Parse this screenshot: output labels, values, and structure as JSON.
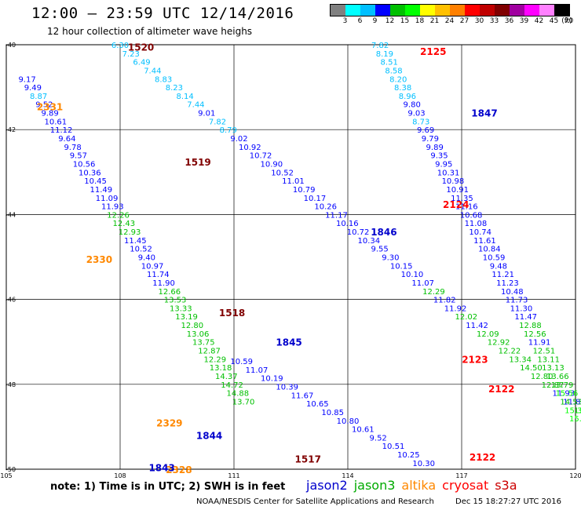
{
  "title": "12:00 – 23:59 UTC 12/14/2016",
  "subtitle": "12 hour collection of altimeter wave heighs",
  "note": "note: 1) Time is in UTC; 2) SWH is in feet",
  "credit": "NOAA/NESDIS Center for Satellite Applications and Research",
  "generated": "Dec 15 18:27:27 UTC 2016",
  "scale": {
    "unit": "(ft)",
    "colors": [
      "#808080",
      "#00ffff",
      "#00bfff",
      "#0000ff",
      "#00c000",
      "#00ff00",
      "#ffff00",
      "#ffc000",
      "#ff8000",
      "#ff0000",
      "#c00000",
      "#800000",
      "#a000a0",
      "#ff00ff",
      "#ff80ff",
      "#000000"
    ],
    "labels": [
      "3",
      "6",
      "9",
      "12",
      "15",
      "18",
      "21",
      "24",
      "27",
      "30",
      "33",
      "36",
      "39",
      "42",
      "45",
      "70"
    ]
  },
  "satellites": [
    {
      "name": "jason2",
      "color": "#0000cc"
    },
    {
      "name": "jason3",
      "color": "#00aa00"
    },
    {
      "name": "altika",
      "color": "#ff8800"
    },
    {
      "name": "cryosat",
      "color": "#ff0000"
    },
    {
      "name": "s3a",
      "color": "#cc0000"
    }
  ],
  "map": {
    "lon_range": [
      105,
      120
    ],
    "lat_range": [
      -50,
      -40
    ],
    "lon_ticks": [
      105,
      108,
      111,
      114,
      117,
      120
    ],
    "lat_ticks": [
      -40,
      -42,
      -44,
      -46,
      -48,
      -50
    ],
    "lon_labels": [
      "105",
      "108",
      "111",
      "114",
      "117",
      "120"
    ],
    "lat_labels": [
      "-40",
      "-42",
      "-44",
      "-46",
      "-48",
      "-50"
    ]
  },
  "chart_data": {
    "type": "scatter",
    "xlabel": "",
    "ylabel": "",
    "xlim": [
      105,
      120
    ],
    "ylim": [
      -50,
      -40
    ],
    "grid": true,
    "tracks": [
      {
        "id": "cryosat-1520",
        "lon0": 108.0,
        "lat0": -40.0,
        "dlon": 0.285,
        "dlat": 0.2,
        "values": [
          6.3,
          7.23,
          6.49,
          7.44,
          8.83,
          8.23,
          8.14,
          7.44,
          9.01,
          7.82,
          8.79,
          9.02,
          10.92,
          10.72,
          10.9,
          10.52,
          11.01,
          10.79,
          10.17,
          10.26,
          11.17,
          10.16,
          10.72,
          10.34,
          9.55,
          9.3,
          10.15,
          10.1,
          11.07,
          12.29,
          11.82,
          11.92,
          12.02,
          11.42,
          12.09,
          12.92,
          12.22,
          13.34,
          14.5,
          12.8,
          12.87,
          11.93,
          11.89,
          13.32,
          15.21,
          14.53,
          13.32,
          13.28
        ]
      },
      {
        "id": "altika-2331",
        "lon0": 105.55,
        "lat0": -40.8,
        "dlon": 0.15,
        "dlat": 0.2,
        "values": [
          9.17,
          9.49,
          8.87,
          9.52,
          9.89,
          10.61,
          11.12,
          9.64,
          9.78,
          9.57,
          10.56,
          10.36,
          10.45,
          11.49,
          11.09,
          11.93,
          12.26,
          12.43,
          12.93,
          11.45,
          10.52,
          9.4,
          10.97,
          11.74,
          11.9,
          12.66,
          13.53,
          13.33,
          13.19,
          12.8,
          13.06,
          13.75,
          12.87,
          12.29,
          13.18,
          14.37,
          14.72,
          14.88,
          13.7
        ]
      },
      {
        "id": "jason2-1845",
        "lon0": 111.2,
        "lat0": -47.45,
        "dlon": 0.4,
        "dlat": 0.2,
        "values": [
          10.59,
          11.07,
          10.19,
          10.39,
          11.67,
          10.65,
          10.85,
          10.8,
          10.61,
          9.52,
          10.51,
          10.25,
          10.3,
          10.95,
          11.48,
          11.14,
          10.94,
          9.95,
          10.65,
          10.57,
          9.47,
          9.79,
          10.98,
          10.31,
          9.91,
          9.95,
          9.89,
          9.79,
          9.69,
          9.61,
          9.66,
          9.48,
          9.51,
          7.45,
          7.03,
          7.72,
          7.47,
          7.77,
          7.26,
          7.41,
          6.69,
          7.5,
          6.69,
          8.09
        ]
      },
      {
        "id": "s3a-2125",
        "lon0": 114.85,
        "lat0": -40.0,
        "dlon": 0.12,
        "dlat": 0.2,
        "values": [
          7.82,
          8.19,
          8.51,
          8.58,
          8.2,
          8.38,
          8.96,
          9.8,
          9.03,
          8.73,
          9.69,
          9.79,
          9.89,
          9.35,
          9.95,
          10.31,
          10.98,
          10.91,
          11.35,
          11.16,
          10.68,
          11.08,
          10.74,
          11.61,
          10.84,
          10.59,
          9.48,
          11.21,
          11.23,
          10.48,
          11.73,
          11.3,
          11.47,
          12.88,
          12.56,
          11.91,
          12.51,
          13.11,
          13.13,
          13.66,
          13.79,
          15.56,
          14.53,
          15.32,
          15.39
        ]
      }
    ],
    "pass_labels": [
      {
        "text": "1520",
        "lon": 108.55,
        "lat": -40.05,
        "color": "#800000"
      },
      {
        "text": "1519",
        "lon": 110.05,
        "lat": -42.75,
        "color": "#800000"
      },
      {
        "text": "1518",
        "lon": 110.95,
        "lat": -46.3,
        "color": "#800000"
      },
      {
        "text": "1517",
        "lon": 112.95,
        "lat": -49.75,
        "color": "#800000"
      },
      {
        "text": "2331",
        "lon": 106.15,
        "lat": -41.45,
        "color": "#ff8800"
      },
      {
        "text": "2330",
        "lon": 107.45,
        "lat": -45.05,
        "color": "#ff8800"
      },
      {
        "text": "2329",
        "lon": 109.3,
        "lat": -48.9,
        "color": "#ff8800"
      },
      {
        "text": "2328",
        "lon": 109.55,
        "lat": -50.0,
        "color": "#ff8800"
      },
      {
        "text": "1847",
        "lon": 117.6,
        "lat": -41.6,
        "color": "#0000cc"
      },
      {
        "text": "1846",
        "lon": 114.95,
        "lat": -44.4,
        "color": "#0000cc"
      },
      {
        "text": "1845",
        "lon": 112.45,
        "lat": -47.0,
        "color": "#0000cc"
      },
      {
        "text": "1844",
        "lon": 110.35,
        "lat": -49.2,
        "color": "#0000cc"
      },
      {
        "text": "1843",
        "lon": 109.1,
        "lat": -49.95,
        "color": "#0000cc"
      },
      {
        "text": "2125",
        "lon": 116.25,
        "lat": -40.15,
        "color": "#ff0000"
      },
      {
        "text": "2124",
        "lon": 116.85,
        "lat": -43.75,
        "color": "#ff0000"
      },
      {
        "text": "2123",
        "lon": 117.35,
        "lat": -47.4,
        "color": "#ff0000"
      },
      {
        "text": "2122",
        "lon": 118.05,
        "lat": -48.1,
        "color": "#ff0000"
      },
      {
        "text": "2122",
        "lon": 117.55,
        "lat": -49.7,
        "color": "#ff0000"
      }
    ]
  }
}
